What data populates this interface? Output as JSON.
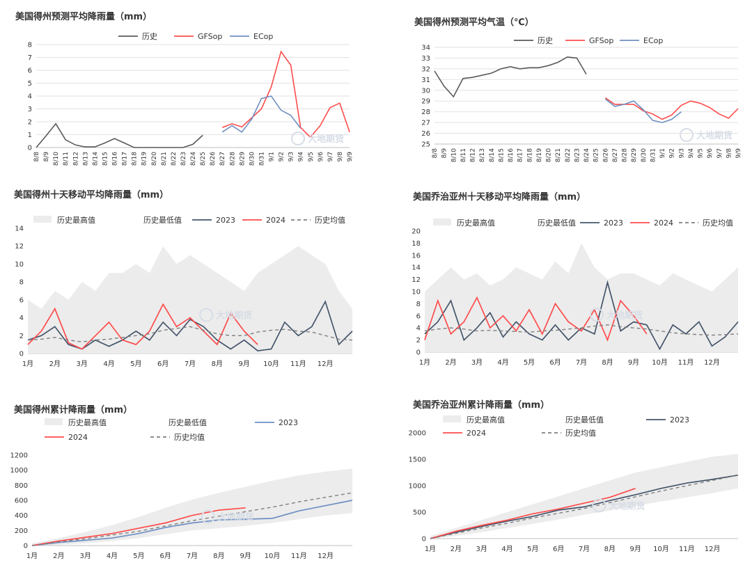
{
  "chart_data": [
    {
      "id": "c1",
      "type": "line",
      "title": "美国得州预测平均降雨量（mm）",
      "ylim": [
        0,
        8
      ],
      "yticks": [
        "0",
        "1",
        "2",
        "3",
        "4",
        "5",
        "6",
        "7",
        "8"
      ],
      "categories": [
        "8/8",
        "8/9",
        "8/10",
        "8/11",
        "8/12",
        "8/13",
        "8/14",
        "8/15",
        "8/16",
        "8/17",
        "8/18",
        "8/19",
        "8/20",
        "8/21",
        "8/22",
        "8/23",
        "8/24",
        "8/25",
        "8/26",
        "8/27",
        "8/28",
        "8/29",
        "8/30",
        "8/31",
        "9/1",
        "9/2",
        "9/3",
        "9/4",
        "9/5",
        "9/6",
        "9/7",
        "9/8",
        "9/9"
      ],
      "legend": [
        "历史",
        "GFSop",
        "ECop"
      ],
      "series": [
        {
          "name": "历史",
          "color": "#595959",
          "values": [
            0,
            0.9,
            1.85,
            0.6,
            0.2,
            0.05,
            0.05,
            0.35,
            0.7,
            0.35,
            0,
            0,
            0,
            0,
            0,
            0,
            0.25,
            0.95,
            null,
            null,
            null,
            null,
            null,
            null,
            null,
            null,
            null,
            null,
            null,
            null,
            null,
            null,
            null
          ]
        },
        {
          "name": "GFSop",
          "color": "#ff4b4b",
          "values": [
            null,
            null,
            null,
            null,
            null,
            null,
            null,
            null,
            null,
            null,
            null,
            null,
            null,
            null,
            null,
            null,
            null,
            null,
            null,
            1.55,
            1.85,
            1.6,
            2.3,
            3.0,
            4.7,
            7.45,
            6.4,
            1.55,
            0.8,
            1.7,
            3.1,
            3.45,
            1.2
          ]
        },
        {
          "name": "ECop",
          "color": "#6d8fc2",
          "values": [
            null,
            null,
            null,
            null,
            null,
            null,
            null,
            null,
            null,
            null,
            null,
            null,
            null,
            null,
            null,
            null,
            null,
            null,
            null,
            1.2,
            1.7,
            1.2,
            2.2,
            3.8,
            4.0,
            2.9,
            2.5,
            1.5,
            null,
            null,
            null,
            null,
            null
          ]
        }
      ]
    },
    {
      "id": "c2",
      "type": "line",
      "title": "美国得州预测平均气温（℃）",
      "ylim": [
        25,
        34
      ],
      "yticks": [
        "25",
        "26",
        "27",
        "28",
        "29",
        "30",
        "31",
        "32",
        "33",
        "34"
      ],
      "categories": [
        "8/8",
        "8/9",
        "8/10",
        "8/11",
        "8/12",
        "8/13",
        "8/14",
        "8/15",
        "8/16",
        "8/17",
        "8/18",
        "8/19",
        "8/20",
        "8/21",
        "8/22",
        "8/23",
        "8/24",
        "8/25",
        "8/26",
        "8/27",
        "8/28",
        "8/29",
        "8/30",
        "8/31",
        "9/1",
        "9/2",
        "9/3",
        "9/4",
        "9/5",
        "9/6",
        "9/7",
        "9/8",
        "9/9"
      ],
      "legend": [
        "历史",
        "GFSop",
        "ECop"
      ],
      "series": [
        {
          "name": "历史",
          "color": "#595959",
          "values": [
            31.8,
            30.4,
            29.4,
            31.1,
            31.2,
            31.4,
            31.6,
            32.0,
            32.2,
            32.0,
            32.1,
            32.1,
            32.3,
            32.6,
            33.1,
            33.0,
            31.5,
            null,
            null,
            null,
            null,
            null,
            null,
            null,
            null,
            null,
            null,
            null,
            null,
            null,
            null,
            null,
            null
          ]
        },
        {
          "name": "GFSop",
          "color": "#ff4b4b",
          "values": [
            null,
            null,
            null,
            null,
            null,
            null,
            null,
            null,
            null,
            null,
            null,
            null,
            null,
            null,
            null,
            null,
            null,
            null,
            29.3,
            28.7,
            28.7,
            28.7,
            28.1,
            27.8,
            27.3,
            27.7,
            28.6,
            29.0,
            28.8,
            28.4,
            27.8,
            27.4,
            28.3
          ]
        },
        {
          "name": "ECop",
          "color": "#6d8fc2",
          "values": [
            null,
            null,
            null,
            null,
            null,
            null,
            null,
            null,
            null,
            null,
            null,
            null,
            null,
            null,
            null,
            null,
            null,
            null,
            29.2,
            28.5,
            28.7,
            29.0,
            28.2,
            27.2,
            27.0,
            27.3,
            28.0,
            null,
            null,
            null,
            null,
            null,
            null
          ]
        }
      ]
    },
    {
      "id": "c3",
      "type": "area",
      "title": "美国得州十天移动平均降雨量（mm）",
      "ylim": [
        0,
        14
      ],
      "yticks": [
        "0",
        "2",
        "4",
        "6",
        "8",
        "10",
        "12",
        "14"
      ],
      "categories": [
        "1月",
        "2月",
        "3月",
        "4月",
        "5月",
        "6月",
        "7月",
        "8月",
        "9月",
        "10月",
        "11月",
        "12月"
      ],
      "legend": [
        "历史最高值",
        "历史最低值",
        "2023",
        "2024",
        "历史均值"
      ],
      "x": [
        0,
        0.5,
        1,
        1.5,
        2,
        2.5,
        3,
        3.5,
        4,
        4.5,
        5,
        5.5,
        6,
        6.5,
        7,
        7.5,
        8,
        8.5,
        9,
        9.5,
        10,
        10.5,
        11,
        11.5,
        12
      ],
      "series": [
        {
          "name": "历史最高值",
          "color": "#eeeeee",
          "values": [
            6,
            5,
            7,
            6,
            8,
            7,
            9,
            9,
            10,
            9,
            12,
            10,
            11,
            10,
            9,
            8,
            7,
            9,
            10,
            11,
            12,
            11,
            10,
            7,
            5
          ]
        },
        {
          "name": "历史最低值",
          "color": "#ffffff",
          "values": [
            0,
            0,
            0,
            0,
            0,
            0,
            0,
            0,
            0,
            0,
            0,
            0,
            0,
            0,
            0,
            0,
            0,
            0,
            0,
            0,
            0,
            0,
            0,
            0,
            0
          ]
        },
        {
          "name": "2023",
          "color": "#44546a",
          "values": [
            1.5,
            2.0,
            3.0,
            1.0,
            0.5,
            1.5,
            0.8,
            1.5,
            2.5,
            1.5,
            3.5,
            2.0,
            3.8,
            3.0,
            1.5,
            0.5,
            1.5,
            0.3,
            0.5,
            3.5,
            2.0,
            3.0,
            5.8,
            1.0,
            2.5
          ]
        },
        {
          "name": "2024",
          "color": "#ff4b4b",
          "values": [
            1.0,
            2.5,
            5.0,
            1.2,
            0.5,
            2.0,
            3.5,
            1.5,
            1.0,
            2.5,
            5.5,
            3.0,
            4.0,
            2.5,
            1.0,
            4.5,
            2.5,
            1.0,
            null,
            null,
            null,
            null,
            null,
            null,
            null
          ]
        },
        {
          "name": "历史均值",
          "color": "#7f7f7f",
          "values": [
            1.5,
            1.6,
            1.8,
            1.5,
            1.3,
            1.5,
            1.6,
            1.8,
            2.0,
            2.2,
            2.6,
            2.8,
            3.0,
            2.6,
            2.2,
            2.0,
            2.0,
            2.4,
            2.6,
            2.7,
            2.5,
            2.4,
            2.0,
            1.6,
            1.5
          ]
        }
      ]
    },
    {
      "id": "c4",
      "type": "area",
      "title": "美国乔治亚州十天移动平均降雨量（mm）",
      "ylim": [
        0,
        20
      ],
      "yticks": [
        "0",
        "2",
        "4",
        "6",
        "8",
        "10",
        "12",
        "14",
        "16",
        "18",
        "20"
      ],
      "categories": [
        "1月",
        "2月",
        "3月",
        "4月",
        "5月",
        "6月",
        "7月",
        "8月",
        "9月",
        "10月",
        "11月",
        "12月"
      ],
      "legend": [
        "历史最高值",
        "历史最低值",
        "2023",
        "2024",
        "历史均值"
      ],
      "x": [
        0,
        0.5,
        1,
        1.5,
        2,
        2.5,
        3,
        3.5,
        4,
        4.5,
        5,
        5.5,
        6,
        6.5,
        7,
        7.5,
        8,
        8.5,
        9,
        9.5,
        10,
        10.5,
        11,
        11.5,
        12
      ],
      "series": [
        {
          "name": "历史最高值",
          "color": "#eeeeee",
          "values": [
            10,
            12,
            14,
            12,
            13,
            11,
            12,
            14,
            13,
            12,
            15,
            13,
            18,
            14,
            12,
            13,
            13,
            12,
            11,
            13,
            12,
            11,
            10,
            12,
            14
          ]
        },
        {
          "name": "历史最低值",
          "color": "#ffffff",
          "values": [
            0,
            0,
            0,
            0,
            0,
            0,
            0,
            0,
            0,
            0,
            0,
            0,
            0,
            0,
            0,
            0,
            0,
            0,
            0,
            0,
            0,
            0,
            0,
            0,
            0
          ]
        },
        {
          "name": "2023",
          "color": "#44546a",
          "values": [
            3.0,
            5.0,
            8.5,
            2.0,
            4.0,
            6.5,
            2.5,
            5.0,
            3.0,
            2.0,
            4.5,
            2.0,
            4.0,
            3.0,
            11.5,
            3.5,
            5.0,
            4.5,
            0.5,
            4.5,
            3.0,
            5.0,
            1.0,
            2.5,
            5.0
          ]
        },
        {
          "name": "2024",
          "color": "#ff4b4b",
          "values": [
            2.0,
            8.5,
            3.0,
            5.0,
            9.0,
            4.0,
            6.0,
            3.5,
            7.0,
            3.0,
            8.0,
            5.0,
            3.5,
            7.0,
            2.0,
            8.5,
            6.0,
            3.0,
            null,
            null,
            null,
            null,
            null,
            null,
            null
          ]
        },
        {
          "name": "历史均值",
          "color": "#7f7f7f",
          "values": [
            3.5,
            3.8,
            4.0,
            3.8,
            3.5,
            3.6,
            3.5,
            3.4,
            3.3,
            3.5,
            3.6,
            3.8,
            4.0,
            4.3,
            4.5,
            4.2,
            4.0,
            3.8,
            3.5,
            3.2,
            3.0,
            2.9,
            2.8,
            2.9,
            3.0
          ]
        }
      ]
    },
    {
      "id": "c5",
      "type": "area",
      "title": "美国得州累计降雨量（mm）",
      "ylim": [
        0,
        1200
      ],
      "yticks": [
        "0",
        "200",
        "400",
        "600",
        "800",
        "1000",
        "1200"
      ],
      "categories": [
        "1月",
        "2月",
        "3月",
        "4月",
        "5月",
        "6月",
        "7月",
        "8月",
        "9月",
        "10月",
        "11月",
        "12月"
      ],
      "legend": [
        "历史最高值",
        "历史最低值",
        "2023",
        "2024",
        "历史均值"
      ],
      "x": [
        0,
        1,
        2,
        3,
        4,
        5,
        6,
        7,
        8,
        9,
        10,
        11,
        12
      ],
      "series": [
        {
          "name": "历史最高值",
          "color": "#eeeeee",
          "values": [
            30,
            100,
            180,
            270,
            380,
            500,
            610,
            700,
            780,
            860,
            930,
            980,
            1020
          ]
        },
        {
          "name": "历史最低值",
          "color": "#ffffff",
          "values": [
            0,
            10,
            30,
            60,
            100,
            150,
            200,
            230,
            260,
            300,
            350,
            400,
            430
          ]
        },
        {
          "name": "2023",
          "color": "#6d8fc2",
          "values": [
            0,
            40,
            70,
            100,
            160,
            240,
            300,
            340,
            350,
            360,
            460,
            530,
            600
          ]
        },
        {
          "name": "2024",
          "color": "#ff4b4b",
          "values": [
            0,
            60,
            110,
            160,
            230,
            300,
            400,
            470,
            500,
            null,
            null,
            null,
            null
          ]
        },
        {
          "name": "历史均值",
          "color": "#7f7f7f",
          "values": [
            0,
            50,
            90,
            140,
            190,
            260,
            330,
            390,
            450,
            510,
            580,
            640,
            700
          ]
        }
      ]
    },
    {
      "id": "c6",
      "type": "area",
      "title": "美国乔治亚州累计降雨量（mm）",
      "ylim": [
        0,
        2000
      ],
      "yticks": [
        "0",
        "500",
        "1000",
        "1500",
        "2000"
      ],
      "categories": [
        "1月",
        "2月",
        "3月",
        "4月",
        "5月",
        "6月",
        "7月",
        "8月",
        "9月",
        "10月",
        "11月",
        "12月"
      ],
      "legend": [
        "历史最高值",
        "历史最低值",
        "2023",
        "2024",
        "历史均值"
      ],
      "x": [
        0,
        1,
        2,
        3,
        4,
        5,
        6,
        7,
        8,
        9,
        10,
        11,
        12
      ],
      "series": [
        {
          "name": "历史最高值",
          "color": "#eeeeee",
          "values": [
            50,
            200,
            350,
            500,
            650,
            800,
            950,
            1100,
            1250,
            1350,
            1450,
            1550,
            1600
          ]
        },
        {
          "name": "历史最低值",
          "color": "#ffffff",
          "values": [
            0,
            50,
            120,
            200,
            280,
            360,
            450,
            530,
            620,
            700,
            780,
            860,
            950
          ]
        },
        {
          "name": "2023",
          "color": "#44546a",
          "values": [
            0,
            120,
            230,
            330,
            420,
            540,
            600,
            720,
            830,
            950,
            1050,
            1120,
            1200
          ]
        },
        {
          "name": "2024",
          "color": "#ff4b4b",
          "values": [
            0,
            140,
            250,
            350,
            470,
            560,
            670,
            780,
            950,
            null,
            null,
            null,
            null
          ]
        },
        {
          "name": "历史均值",
          "color": "#7f7f7f",
          "values": [
            0,
            100,
            200,
            290,
            390,
            480,
            570,
            680,
            790,
            900,
            1000,
            1100,
            1200
          ]
        }
      ]
    }
  ],
  "watermark": {
    "text": "大地期货",
    "sub": "DADI FUTURES"
  }
}
